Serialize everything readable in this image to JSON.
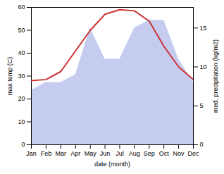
{
  "chart_data": {
    "type": "line",
    "categories": [
      "Jan",
      "Feb",
      "Mar",
      "Apr",
      "May",
      "Jun",
      "Jul",
      "Aug",
      "Sep",
      "Oct",
      "Nov",
      "Dec"
    ],
    "xlabel": "date (month)",
    "ylabel": "max temp (C)",
    "y2label": "med. precipitation (kg/m2)",
    "ylim": [
      0,
      60
    ],
    "yticks": [
      0,
      10,
      20,
      30,
      40,
      50,
      60
    ],
    "y2lim": [
      0,
      17.65
    ],
    "y2ticks": [
      0,
      5,
      10,
      15
    ],
    "grid": false,
    "series": [
      {
        "type": "area",
        "axis": "y2",
        "color": "#c5ccf0",
        "values": [
          7,
          8,
          8,
          9,
          15,
          11,
          11,
          15,
          16,
          16,
          11,
          8
        ]
      },
      {
        "type": "line",
        "axis": "y",
        "color": "#cc3333",
        "values": [
          28,
          28.5,
          32,
          41,
          50,
          57,
          59,
          58.5,
          54,
          43,
          34,
          28.5
        ]
      }
    ]
  }
}
